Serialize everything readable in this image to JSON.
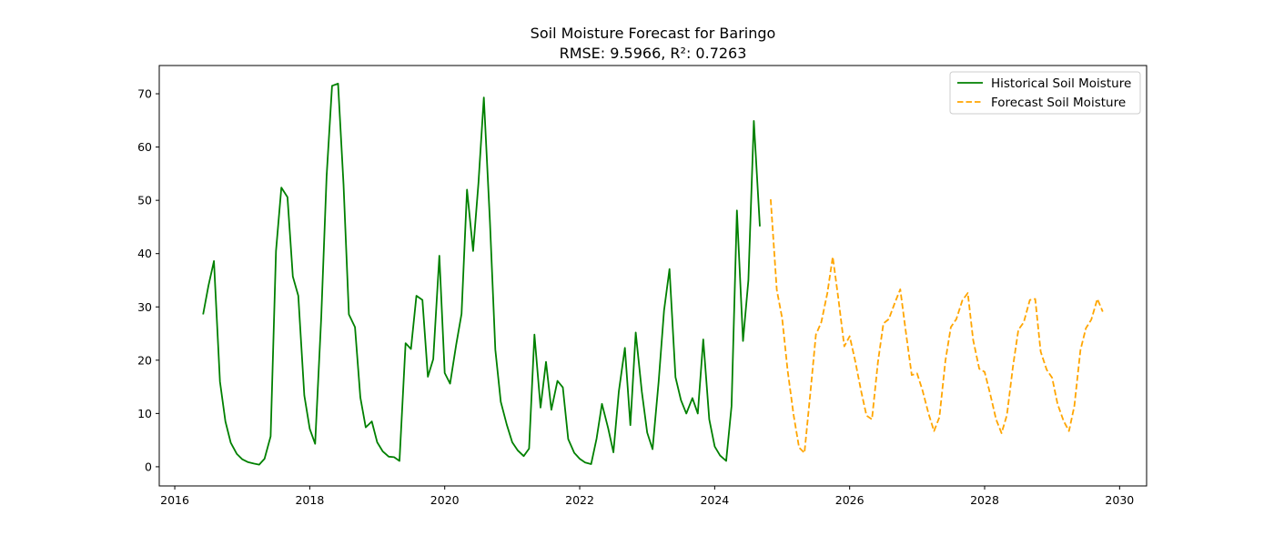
{
  "chart_data": {
    "type": "line",
    "title": "Soil Moisture Forecast for Baringo",
    "subtitle": "RMSE: 9.5966, R²: 0.7263",
    "xlabel": "",
    "ylabel": "",
    "xlim": [
      2015.77,
      2030.4
    ],
    "ylim": [
      -3.6,
      75.3
    ],
    "x_ticks": [
      2016,
      2018,
      2020,
      2022,
      2024,
      2026,
      2028,
      2030
    ],
    "y_ticks": [
      0,
      10,
      20,
      30,
      40,
      50,
      60,
      70
    ],
    "grid": false,
    "legend_position": "top-right",
    "series": [
      {
        "name": "Historical Soil Moisture",
        "color": "#008000",
        "style": "solid",
        "x": [
          2016.42,
          2016.5,
          2016.58,
          2016.67,
          2016.75,
          2016.83,
          2016.92,
          2017.0,
          2017.08,
          2017.17,
          2017.25,
          2017.33,
          2017.42,
          2017.5,
          2017.58,
          2017.67,
          2017.75,
          2017.83,
          2017.92,
          2018.0,
          2018.08,
          2018.17,
          2018.25,
          2018.33,
          2018.42,
          2018.5,
          2018.58,
          2018.67,
          2018.75,
          2018.83,
          2018.92,
          2019.0,
          2019.08,
          2019.17,
          2019.25,
          2019.33,
          2019.42,
          2019.5,
          2019.58,
          2019.67,
          2019.75,
          2019.83,
          2019.92,
          2020.0,
          2020.08,
          2020.17,
          2020.25,
          2020.33,
          2020.42,
          2020.5,
          2020.58,
          2020.67,
          2020.75,
          2020.83,
          2020.92,
          2021.0,
          2021.08,
          2021.17,
          2021.25,
          2021.33,
          2021.42,
          2021.5,
          2021.58,
          2021.67,
          2021.75,
          2021.83,
          2021.92,
          2022.0,
          2022.08,
          2022.17,
          2022.25,
          2022.33,
          2022.42,
          2022.5,
          2022.58,
          2022.67,
          2022.75,
          2022.83,
          2022.92,
          2023.0,
          2023.08,
          2023.17,
          2023.25,
          2023.33,
          2023.42,
          2023.5,
          2023.58,
          2023.67,
          2023.75,
          2023.83,
          2023.92,
          2024.0,
          2024.08,
          2024.17,
          2024.25,
          2024.33,
          2024.42,
          2024.5,
          2024.58,
          2024.67
        ],
        "y": [
          28.6,
          34.0,
          38.6,
          16.0,
          8.5,
          4.5,
          2.4,
          1.4,
          0.9,
          0.6,
          0.4,
          1.5,
          5.7,
          40.5,
          52.4,
          50.6,
          35.7,
          32.1,
          13.4,
          7.1,
          4.3,
          28.0,
          54.5,
          71.5,
          71.9,
          53.0,
          28.6,
          26.2,
          13.0,
          7.4,
          8.5,
          4.6,
          2.9,
          1.9,
          1.8,
          1.1,
          23.2,
          22.1,
          32.1,
          31.3,
          16.9,
          20.2,
          39.6,
          17.6,
          15.6,
          22.9,
          28.7,
          52.0,
          40.5,
          53.3,
          69.3,
          46.0,
          22.0,
          12.2,
          7.9,
          4.6,
          3.1,
          2.0,
          3.4,
          24.8,
          11.1,
          19.7,
          10.7,
          16.1,
          14.9,
          5.2,
          2.6,
          1.5,
          0.8,
          0.5,
          5.3,
          11.8,
          7.3,
          2.7,
          14.1,
          22.3,
          7.8,
          25.2,
          14.1,
          6.4,
          3.3,
          16.0,
          29.3,
          37.1,
          16.8,
          12.5,
          10.0,
          12.9,
          10.0,
          23.9,
          8.9,
          3.8,
          2.1,
          1.1,
          11.4,
          48.1,
          23.6,
          35.0,
          64.9,
          45.1
        ]
      },
      {
        "name": "Forecast Soil Moisture",
        "color": "#FFA500",
        "style": "dashed",
        "x": [
          2024.83,
          2024.92,
          2025.0,
          2025.08,
          2025.17,
          2025.25,
          2025.33,
          2025.42,
          2025.5,
          2025.58,
          2025.67,
          2025.75,
          2025.83,
          2025.92,
          2026.0,
          2026.08,
          2026.17,
          2026.25,
          2026.33,
          2026.42,
          2026.5,
          2026.58,
          2026.67,
          2026.75,
          2026.83,
          2026.92,
          2027.0,
          2027.08,
          2027.17,
          2027.25,
          2027.33,
          2027.42,
          2027.5,
          2027.58,
          2027.67,
          2027.75,
          2027.83,
          2027.92,
          2028.0,
          2028.08,
          2028.17,
          2028.25,
          2028.33,
          2028.42,
          2028.5,
          2028.58,
          2028.67,
          2028.75,
          2028.83,
          2028.92,
          2029.0,
          2029.08,
          2029.17,
          2029.25,
          2029.33,
          2029.42,
          2029.5,
          2029.58,
          2029.67,
          2029.75
        ],
        "y": [
          50.2,
          33.2,
          27.9,
          18.1,
          9.7,
          3.6,
          2.6,
          14.2,
          24.8,
          27.1,
          32.6,
          39.4,
          31.8,
          22.6,
          24.5,
          20.0,
          14.2,
          9.6,
          8.9,
          19.7,
          26.9,
          27.7,
          30.8,
          33.3,
          25.6,
          17.2,
          17.5,
          14.3,
          9.9,
          6.7,
          9.3,
          20.0,
          26.2,
          27.7,
          31.2,
          32.6,
          23.8,
          18.4,
          17.8,
          13.8,
          8.9,
          6.3,
          9.7,
          18.9,
          25.7,
          27.1,
          31.3,
          31.5,
          21.6,
          18.2,
          16.7,
          11.8,
          8.6,
          6.7,
          11.4,
          21.9,
          26.0,
          27.6,
          31.5,
          29.1
        ]
      }
    ]
  }
}
